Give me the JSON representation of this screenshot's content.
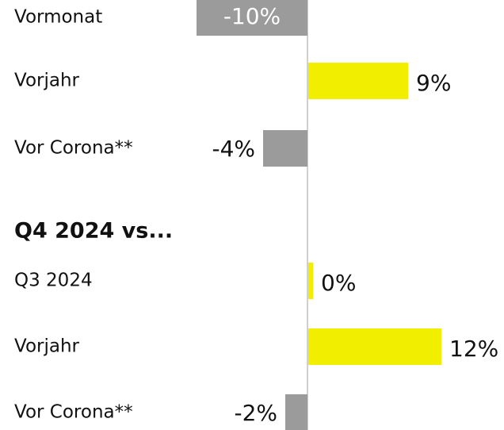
{
  "chart_data": [
    {
      "type": "bar",
      "orientation": "horizontal",
      "categories": [
        "Vormonat",
        "Vorjahr",
        "Vor Corona**"
      ],
      "values": [
        -10,
        9,
        -4
      ],
      "value_labels": [
        "-10%",
        "9%",
        "-4%"
      ],
      "color": "#f2ee00",
      "negative_color": "#9b9b9b"
    },
    {
      "type": "bar",
      "orientation": "horizontal",
      "title": "Q4 2024 vs...",
      "categories": [
        "Q3 2024",
        "Vorjahr",
        "Vor Corona**"
      ],
      "values": [
        0,
        12,
        -2
      ],
      "value_labels": [
        "0%",
        "12%",
        "-2%"
      ],
      "color": "#f2ee00",
      "negative_color": "#9b9b9b"
    }
  ]
}
